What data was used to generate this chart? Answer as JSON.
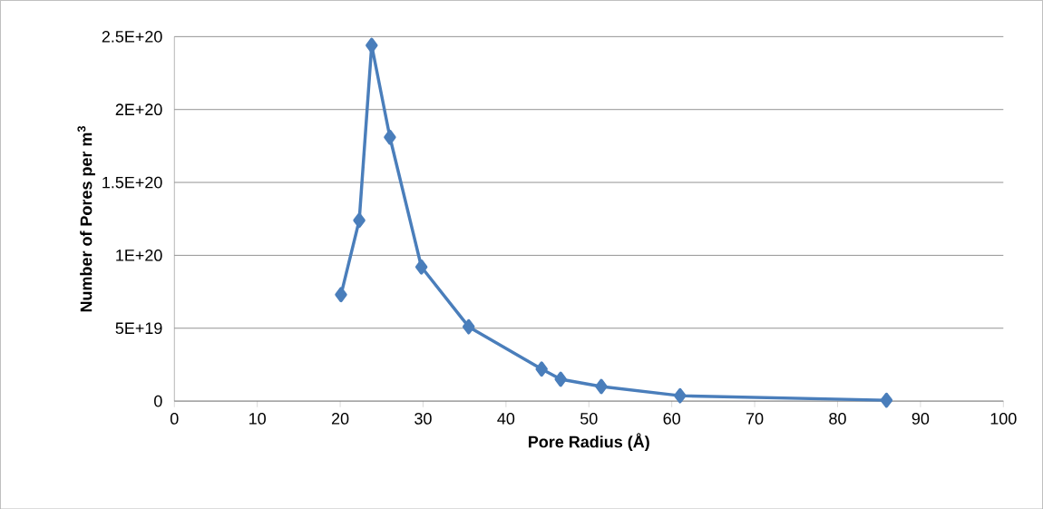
{
  "chart_data": {
    "type": "line",
    "xlabel": "Pore Radius (Å)",
    "ylabel": "Number of Pores per m$^{3}$",
    "x": [
      20.1,
      22.3,
      23.8,
      26.0,
      29.8,
      35.5,
      44.3,
      46.6,
      51.5,
      61.0,
      85.9
    ],
    "series": [
      {
        "color": "#4a7ebb",
        "values": [
          7.3e+19,
          1.24e+20,
          2.44e+20,
          1.81e+20,
          9.2e+19,
          5.1e+19,
          2.2e+19,
          1.5e+19,
          1e+19,
          3.7e+18,
          6e+17
        ]
      }
    ],
    "xlim": [
      0,
      100
    ],
    "xticks": [
      0,
      10,
      20,
      30,
      40,
      50,
      60,
      70,
      80,
      90,
      100
    ],
    "ylim": [
      0,
      2.5e+20
    ],
    "yticks": [
      0,
      {
        "value": 5e+19,
        "label": "5E+19"
      },
      {
        "value": 1e+20,
        "label": "1E+20"
      },
      {
        "value": 1.5e+20,
        "label": "1.5E+20"
      },
      {
        "value": 2e+20,
        "label": "2E+20"
      },
      {
        "value": 2.5e+20,
        "label": "2.5E+20"
      }
    ],
    "grid": "y",
    "marker": "diamond",
    "line_style": "solid"
  }
}
